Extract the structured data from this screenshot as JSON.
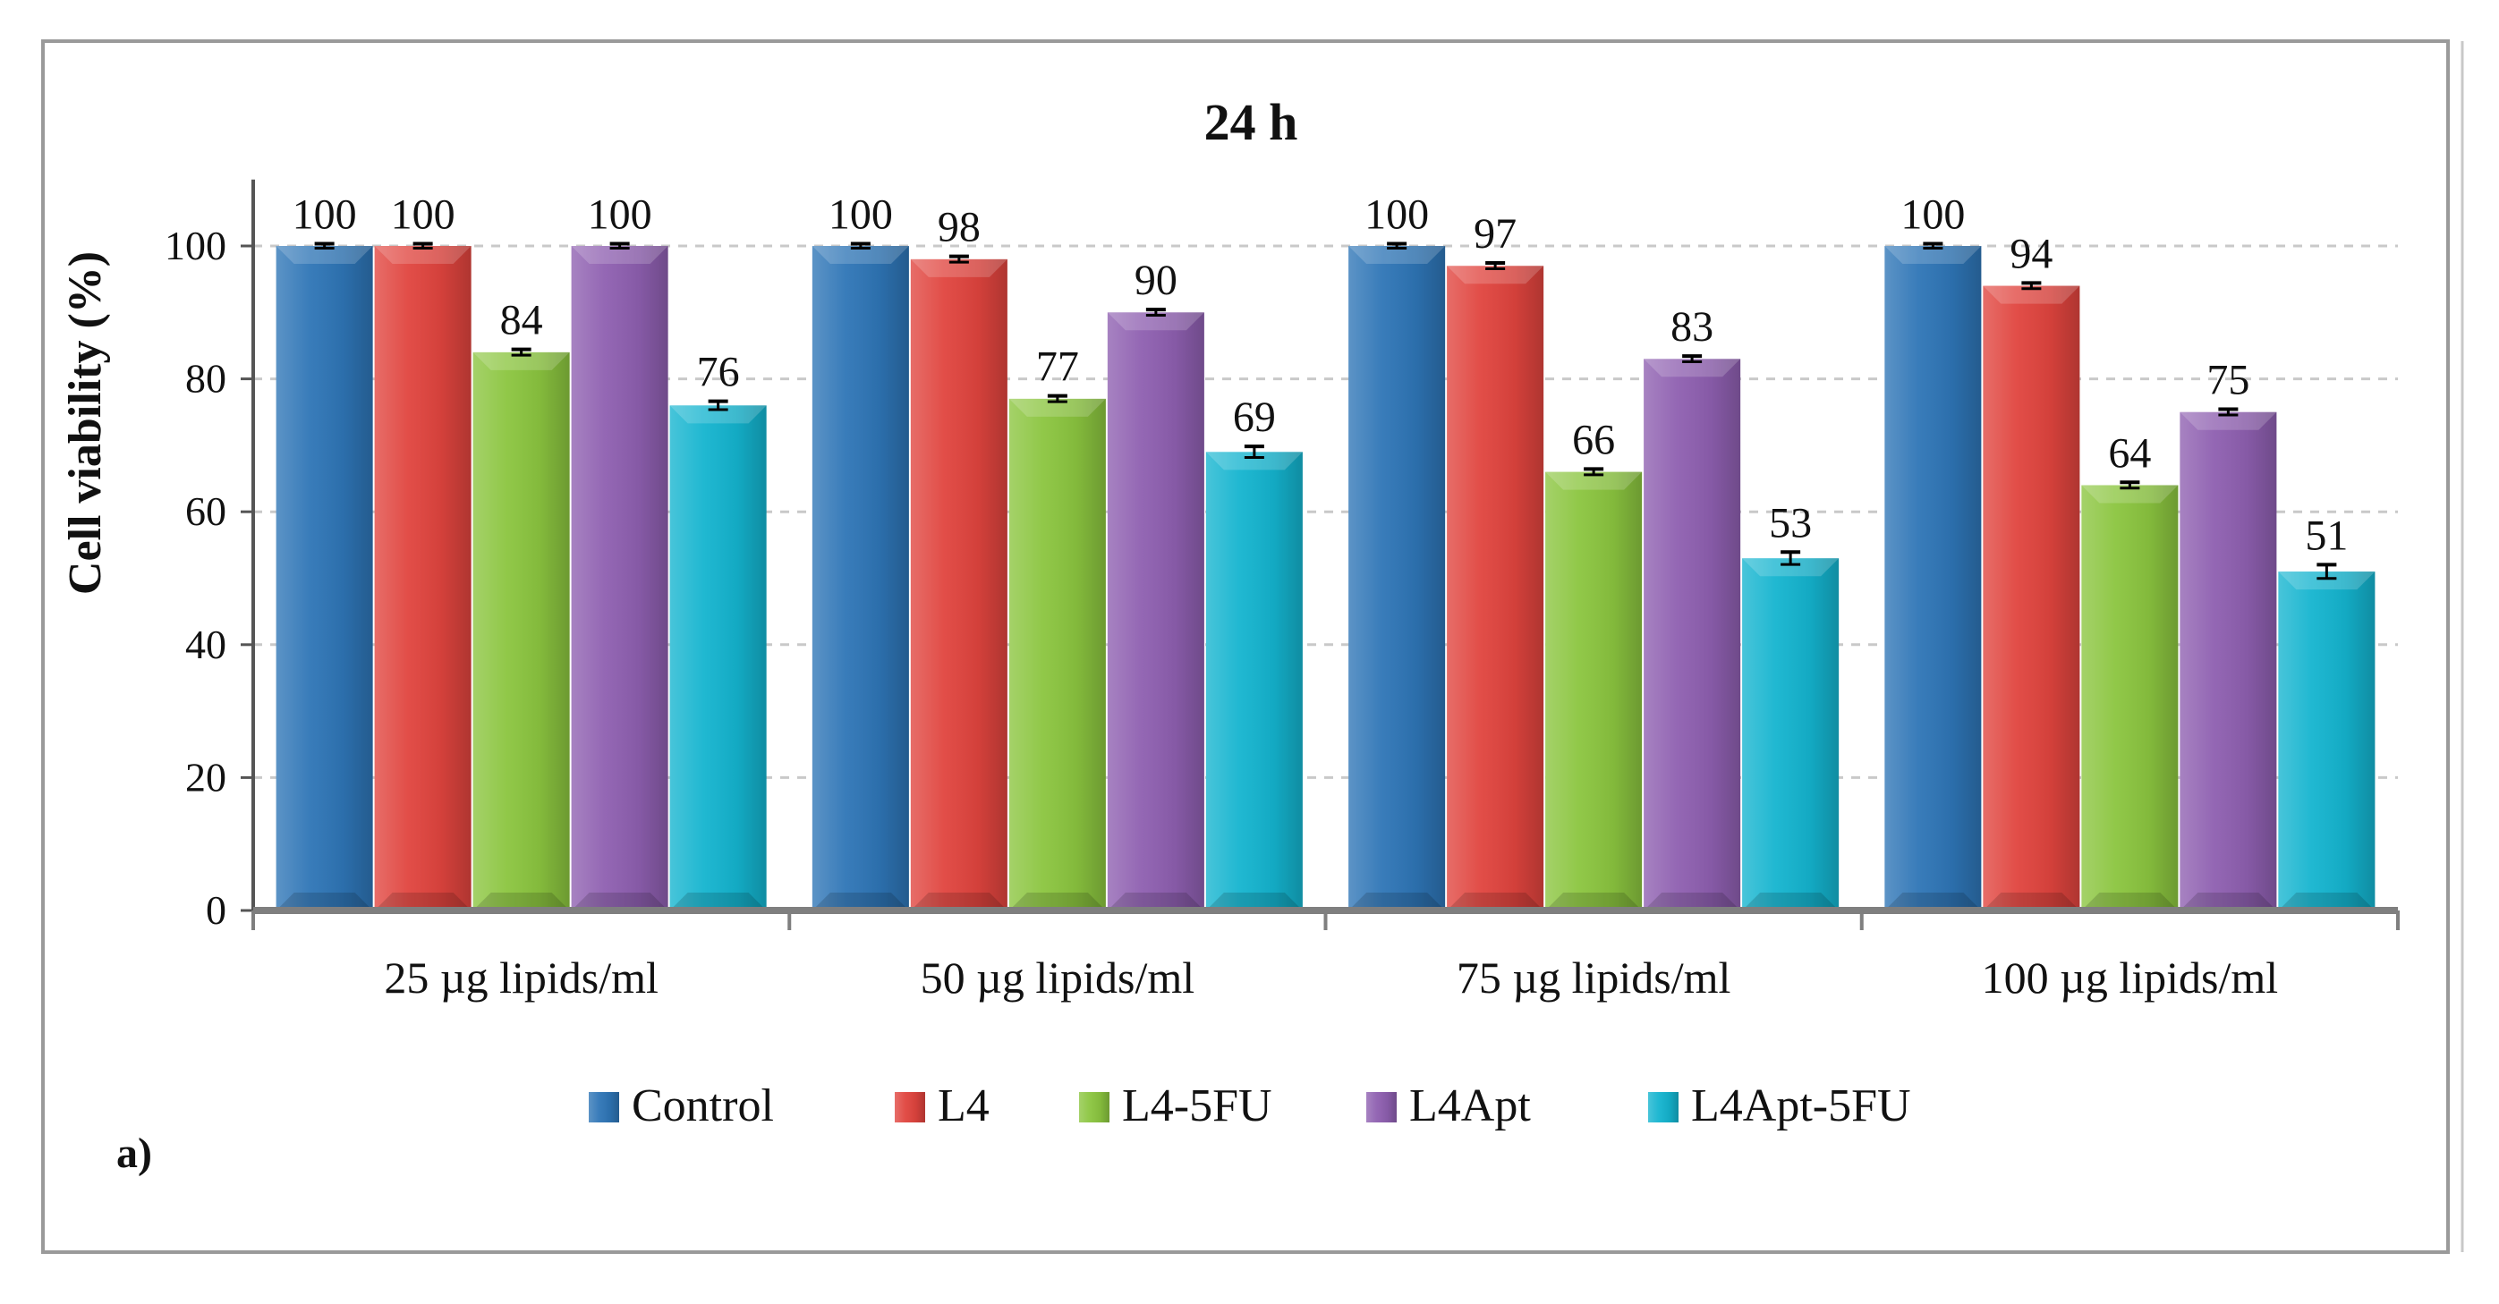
{
  "chart_data": {
    "type": "bar",
    "title": "24 h",
    "ylabel": "Cell viability (%)",
    "xlabel": "",
    "ylim": [
      0,
      110
    ],
    "yticks": [
      0,
      20,
      40,
      60,
      80,
      100
    ],
    "grid": true,
    "legend_position": "bottom",
    "panel_label": "a)",
    "categories": [
      "25 µg lipids/ml",
      "50 µg lipids/ml",
      "75 µg lipids/ml",
      "100 µg lipids/ml"
    ],
    "series": [
      {
        "name": "Control",
        "color": "#2e75b6",
        "values": [
          100,
          100,
          100,
          100
        ],
        "errors": [
          0.2,
          0.2,
          0.2,
          0.2
        ]
      },
      {
        "name": "L4",
        "color": "#e0443e",
        "values": [
          100,
          98,
          97,
          94
        ],
        "errors": [
          0.2,
          0.3,
          0.3,
          0.3
        ]
      },
      {
        "name": "L4-5FU",
        "color": "#8bc53f",
        "values": [
          84,
          77,
          66,
          64
        ],
        "errors": [
          0.3,
          0.3,
          0.3,
          0.3
        ]
      },
      {
        "name": "L4Apt",
        "color": "#8e5fb0",
        "values": [
          100,
          90,
          83,
          75
        ],
        "errors": [
          0.2,
          0.3,
          0.3,
          0.3
        ]
      },
      {
        "name": "L4Apt-5FU",
        "color": "#14b4cf",
        "values": [
          76,
          69,
          53,
          51
        ],
        "errors": [
          0.5,
          0.7,
          0.8,
          0.9
        ]
      }
    ],
    "data_labels": [
      [
        "100",
        "100",
        "100",
        "100"
      ],
      [
        "100",
        "98",
        "97",
        "94"
      ],
      [
        "84",
        "77",
        "66",
        "64"
      ],
      [
        "100",
        "90",
        "83",
        "75"
      ],
      [
        "76",
        "69",
        "53",
        "51"
      ]
    ]
  }
}
